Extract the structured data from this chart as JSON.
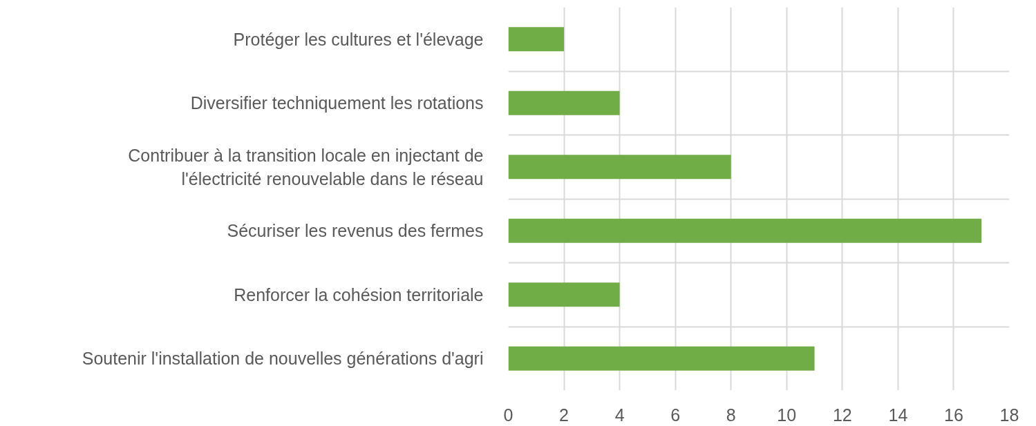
{
  "chart_data": {
    "type": "bar",
    "orientation": "horizontal",
    "categories": [
      "Protéger les cultures et l'élevage",
      "Diversifier techniquement les rotations",
      "Contribuer à la transition locale en injectant de l'électricité renouvelable dans le réseau",
      "Sécuriser les revenus des fermes",
      "Renforcer la cohésion territoriale",
      "Soutenir l'installation de nouvelles générations d'agri"
    ],
    "values": [
      2,
      4,
      8,
      17,
      4,
      11
    ],
    "color": "#70ad47",
    "xlim": [
      0,
      18
    ],
    "xticks": [
      0,
      2,
      4,
      6,
      8,
      10,
      12,
      14,
      16,
      18
    ],
    "grid": true
  }
}
